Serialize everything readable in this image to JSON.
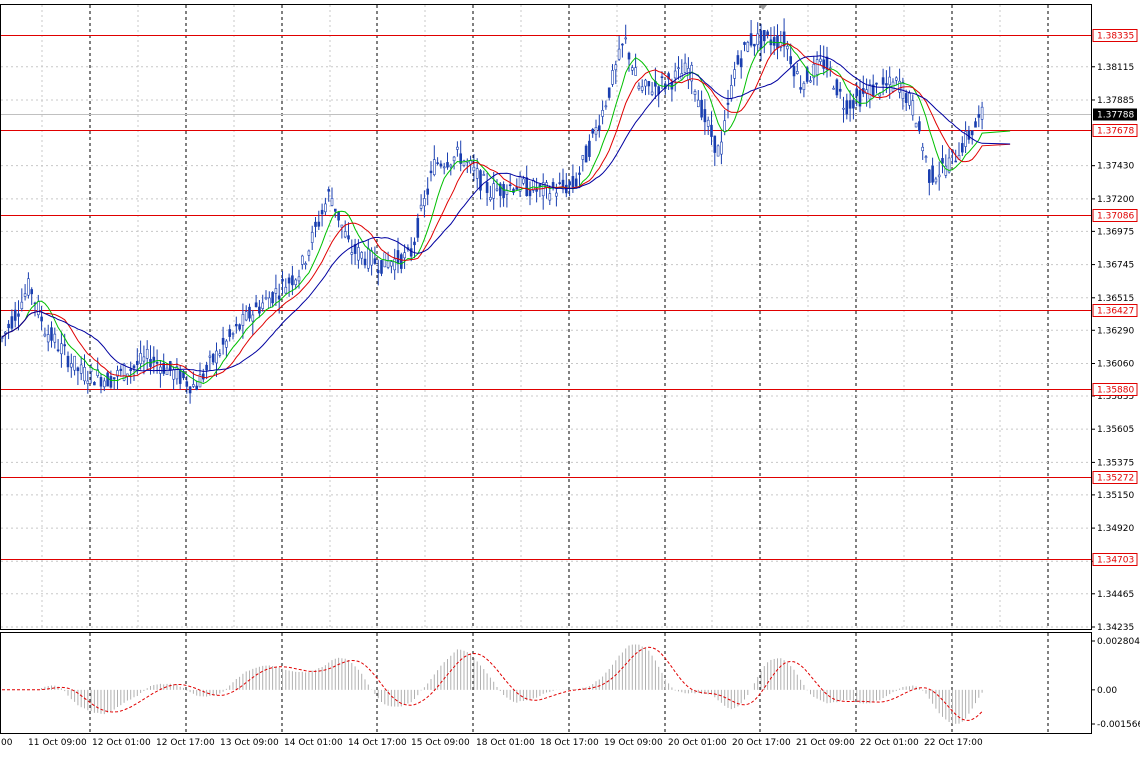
{
  "chart_data": {
    "type": "candlestick",
    "instrument_panel": {
      "price_ticks": [
        "1.38115",
        "1.37885",
        "1.37430",
        "1.37200",
        "1.36975",
        "1.36745",
        "1.36515",
        "1.36290",
        "1.36060",
        "1.35835",
        "1.35605",
        "1.35375",
        "1.35150",
        "1.34920",
        "1.34690",
        "1.34465",
        "1.34235"
      ],
      "price_range": [
        1.34235,
        1.384
      ],
      "current_price": "1.37788",
      "levels": [
        "1.38335",
        "1.37678",
        "1.37086",
        "1.36427",
        "1.35880",
        "1.35272",
        "1.34703"
      ],
      "line_color": "#e00000",
      "current_price_color": "#000000"
    },
    "time_axis": {
      "labels": [
        "11 Oct 09:00",
        "12 Oct 01:00",
        "12 Oct 17:00",
        "13 Oct 09:00",
        "14 Oct 01:00",
        "14 Oct 17:00",
        "15 Oct 09:00",
        "18 Oct 01:00",
        "18 Oct 17:00",
        "19 Oct 09:00",
        "20 Oct 01:00",
        "20 Oct 17:00",
        "21 Oct 09:00",
        "22 Oct 01:00",
        "22 Oct 17:00"
      ],
      "first_label_partial": "00"
    },
    "moving_averages": [
      {
        "color": "#00c000"
      },
      {
        "color": "#e00000"
      },
      {
        "color": "#0000a0"
      }
    ],
    "oscillator_panel": {
      "ticks": [
        "0.002804",
        "0.00",
        "-0.001566"
      ],
      "range": [
        -0.001566,
        0.002804
      ],
      "histogram_color": "#b0b0b0",
      "signal_color": "#e00000"
    },
    "candle_color": "#1a3fb0"
  }
}
